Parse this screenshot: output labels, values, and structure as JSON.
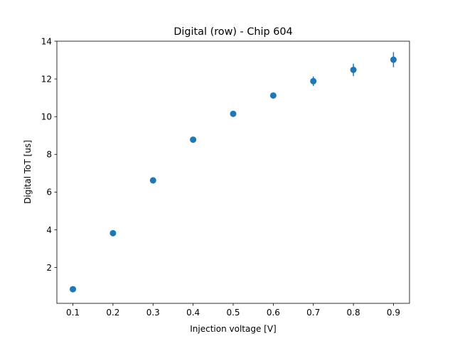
{
  "chart_data": {
    "type": "scatter",
    "title": "Digital (row) - Chip 604",
    "xlabel": "Injection voltage [V]",
    "ylabel": "Digital ToT [us]",
    "xlim": [
      0.06,
      0.94
    ],
    "ylim": [
      0.1,
      14.0
    ],
    "xticks": [
      0.1,
      0.2,
      0.3,
      0.4,
      0.5,
      0.6,
      0.7,
      0.8,
      0.9
    ],
    "xtick_labels": [
      "0.1",
      "0.2",
      "0.3",
      "0.4",
      "0.5",
      "0.6",
      "0.7",
      "0.8",
      "0.9"
    ],
    "yticks": [
      2,
      4,
      6,
      8,
      10,
      12,
      14
    ],
    "ytick_labels": [
      "2",
      "4",
      "6",
      "8",
      "10",
      "12",
      "14"
    ],
    "grid": false,
    "marker_color": "#1f77b4",
    "series": [
      {
        "x": [
          0.1,
          0.2,
          0.3,
          0.4,
          0.5,
          0.6,
          0.7,
          0.8,
          0.9
        ],
        "y": [
          0.85,
          3.82,
          6.62,
          8.78,
          10.15,
          11.12,
          11.88,
          12.48,
          13.02
        ],
        "yerr": [
          0.05,
          0.05,
          0.05,
          0.05,
          0.05,
          0.06,
          0.25,
          0.33,
          0.4
        ]
      }
    ]
  }
}
